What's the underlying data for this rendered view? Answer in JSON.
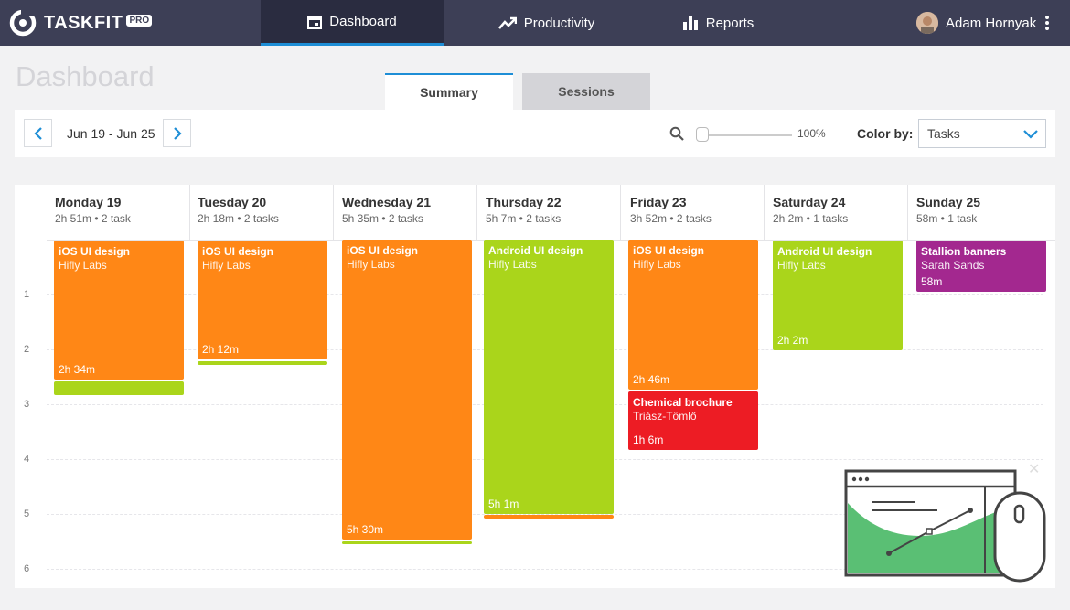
{
  "app": {
    "name": "TASKFIT",
    "badge": "PRO"
  },
  "nav": [
    {
      "label": "Dashboard",
      "icon": "calendar-icon"
    },
    {
      "label": "Productivity",
      "icon": "trend-icon"
    },
    {
      "label": "Reports",
      "icon": "bar-chart-icon"
    }
  ],
  "user": {
    "name": "Adam Hornyak"
  },
  "page": {
    "title": "Dashboard"
  },
  "tabs": [
    "Summary",
    "Sessions"
  ],
  "toolbar": {
    "date_range": "Jun 19 - Jun 25",
    "zoom": "100%",
    "zoom_fraction": 0,
    "color_by_label": "Color by:",
    "color_by_value": "Tasks"
  },
  "hours": [
    "1",
    "2",
    "3",
    "4",
    "5",
    "6"
  ],
  "days": [
    {
      "name": "Monday 19",
      "meta": "2h 51m • 2 task"
    },
    {
      "name": "Tuesday 20",
      "meta": "2h 18m • 2 tasks"
    },
    {
      "name": "Wednesday 21",
      "meta": "5h 35m •  2 tasks"
    },
    {
      "name": "Thursday 22",
      "meta": "5h 7m •  2 tasks"
    },
    {
      "name": "Friday 23",
      "meta": "3h 52m •  2 tasks"
    },
    {
      "name": "Saturday 24",
      "meta": "2h 2m • 1 tasks"
    },
    {
      "name": "Sunday 25",
      "meta": "58m • 1 task"
    }
  ],
  "blocks": [
    {
      "title": "iOS UI design",
      "client": "Hifly Labs",
      "duration": "2h 34m"
    },
    {
      "title": "iOS UI design",
      "client": "Hifly Labs",
      "duration": "2h 12m"
    },
    {
      "title": "iOS UI design",
      "client": "Hifly Labs",
      "duration": "5h 30m"
    },
    {
      "title": "Android UI design",
      "client": "Hifly Labs",
      "duration": "5h 1m"
    },
    {
      "title": "iOS UI design",
      "client": "Hifly Labs",
      "duration": "2h 46m"
    },
    {
      "title": "Chemical brochure",
      "client": "Triász-Tömlő",
      "duration": "1h 6m"
    },
    {
      "title": "Android UI design",
      "client": "Hifly Labs",
      "duration": "2h 2m"
    },
    {
      "title": "Stallion banners",
      "client": "Sarah Sands",
      "duration": "58m"
    }
  ],
  "colors": {
    "orange": "#ff8716",
    "green": "#aad51b",
    "red": "#ed1c24",
    "purple": "#a3288f",
    "nav": "#3d3f56",
    "accent": "#1e8ed6"
  }
}
